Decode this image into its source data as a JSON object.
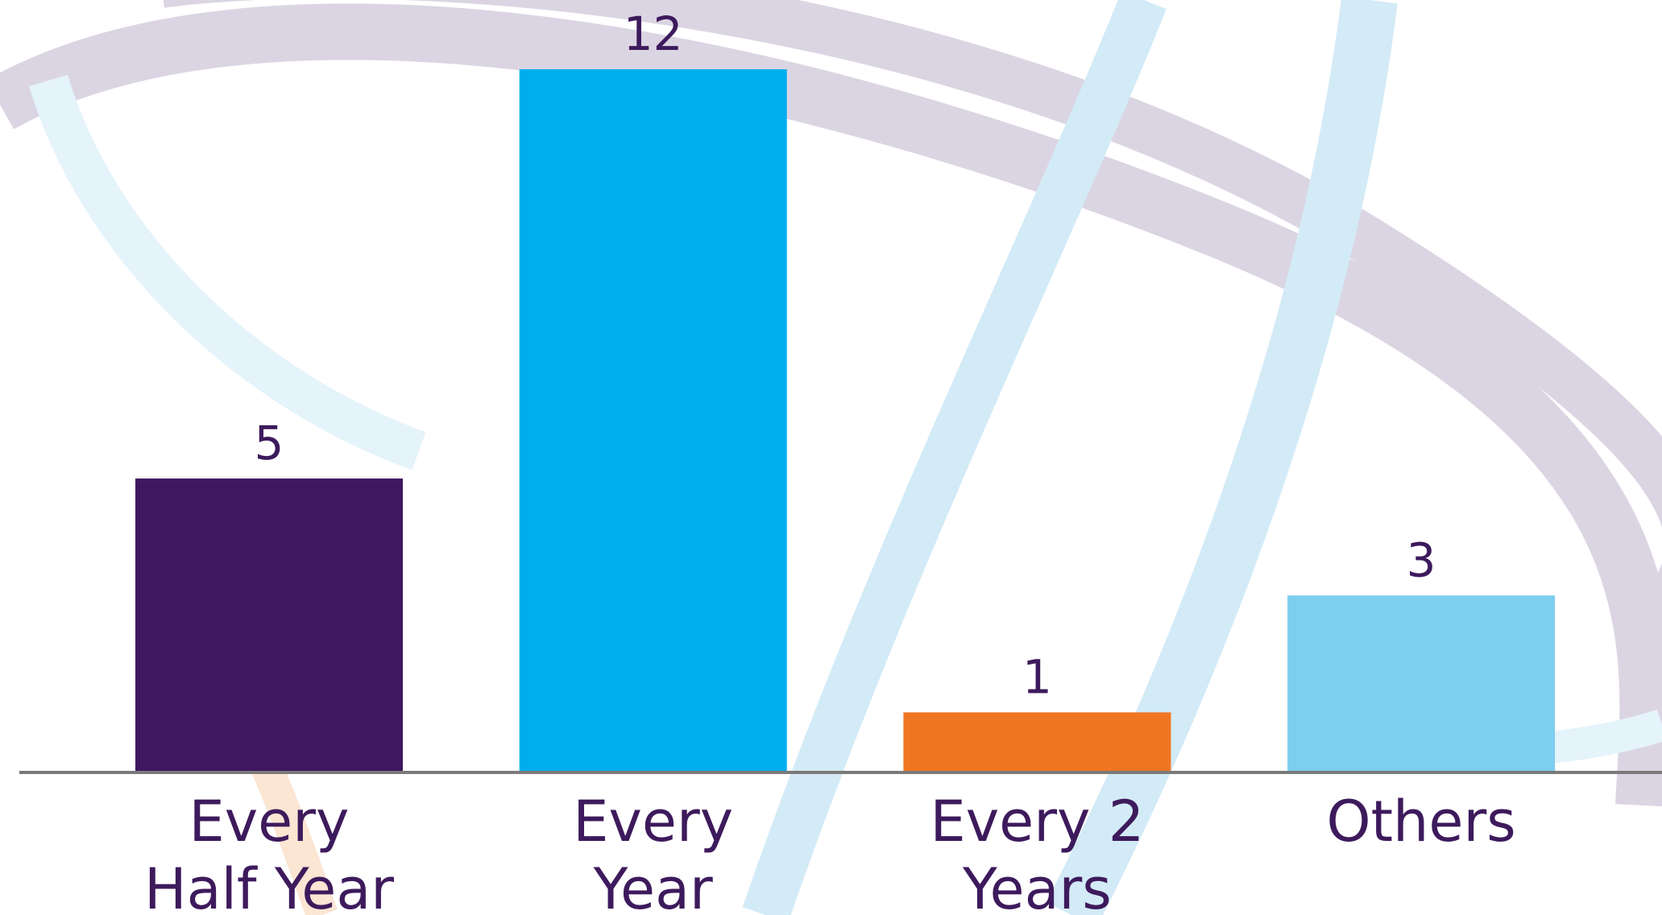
{
  "chart_data": {
    "type": "bar",
    "categories": [
      [
        "Every",
        "Half Year"
      ],
      [
        "Every",
        "Year"
      ],
      [
        "Every 2",
        "Years"
      ],
      [
        "Others"
      ]
    ],
    "values": [
      5,
      12,
      1,
      3
    ],
    "colors": [
      "#3f1760",
      "#00adee",
      "#f07622",
      "#7ecef0"
    ],
    "value_labels_shown": true
  }
}
